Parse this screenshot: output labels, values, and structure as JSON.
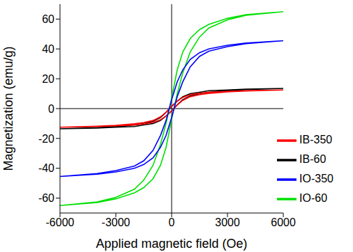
{
  "chart_data": {
    "type": "line",
    "x_label": "Applied magnetic field (Oe)",
    "y_label": "Magnetization (emu/g)",
    "xlim": [
      -6000,
      6000
    ],
    "xticks": [
      -6000,
      -3000,
      0,
      3000,
      6000
    ],
    "ylim": [
      -70,
      70
    ],
    "yticks": [
      -60,
      -40,
      -20,
      0,
      20,
      40,
      60
    ],
    "legend": "lower right",
    "grid": false,
    "x": [
      6000,
      4000,
      3000,
      2000,
      1500,
      1000,
      600,
      300,
      0,
      -300,
      -600,
      -1000,
      -1500,
      -2000,
      -3000,
      -4000,
      -6000,
      -4000,
      -3000,
      -2000,
      -1500,
      -1000,
      -600,
      -300,
      0,
      300,
      600,
      1000,
      1500,
      2000,
      3000,
      4000,
      6000
    ],
    "series": [
      {
        "name": "IB-60",
        "color": "#000000",
        "values": [
          13.5,
          13,
          12.5,
          12,
          11,
          10,
          8,
          5,
          1.5,
          -2.5,
          -6,
          -8.5,
          -10,
          -11,
          -12,
          -12.7,
          -13.5,
          -13,
          -12.5,
          -12,
          -11,
          -10,
          -8,
          -5,
          -1.5,
          2.5,
          6,
          8.5,
          10,
          11,
          12,
          12.7,
          13.5
        ]
      },
      {
        "name": "IB-350",
        "color": "#ff0000",
        "values": [
          12.5,
          12,
          11.5,
          11,
          10.3,
          9.3,
          7.5,
          5,
          1.5,
          -2.5,
          -5.5,
          -8,
          -9.3,
          -10.2,
          -11.2,
          -11.8,
          -12.5,
          -12,
          -11.5,
          -11,
          -10.3,
          -9.3,
          -7.5,
          -5,
          -1.5,
          2.5,
          5.5,
          8,
          9.3,
          10.2,
          11.2,
          11.8,
          12.5
        ]
      },
      {
        "name": "IO-60",
        "color": "#00e000",
        "values": [
          65,
          63,
          60.5,
          56.5,
          53,
          47,
          38,
          26,
          7,
          -10,
          -24,
          -38,
          -48,
          -54,
          -59.5,
          -62.5,
          -65,
          -63,
          -60.5,
          -56.5,
          -53,
          -47,
          -38,
          -26,
          -7,
          10,
          24,
          38,
          48,
          54,
          59.5,
          62.5,
          65
        ]
      },
      {
        "name": "IO-350",
        "color": "#0000ff",
        "values": [
          45.5,
          44,
          42.5,
          40,
          37.5,
          33,
          26,
          18,
          6,
          -8,
          -18,
          -28,
          -35,
          -38.5,
          -41.5,
          -43.5,
          -45.5,
          -44,
          -42.5,
          -40,
          -37.5,
          -33,
          -26,
          -18,
          -6,
          8,
          18,
          28,
          35,
          38.5,
          41.5,
          43.5,
          45.5
        ]
      }
    ]
  }
}
